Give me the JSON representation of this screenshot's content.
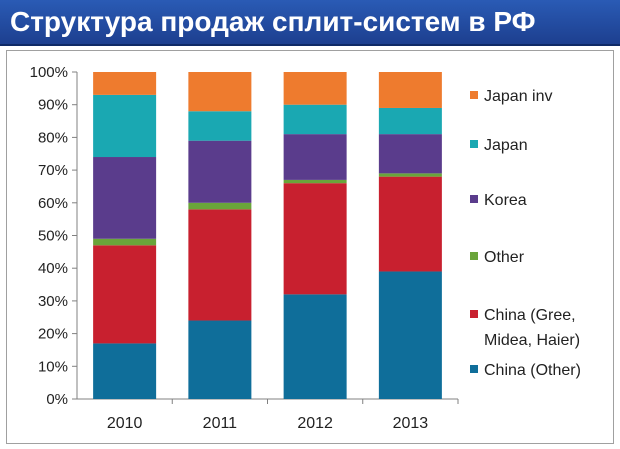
{
  "title": "Структура продаж сплит-систем в РФ",
  "chart_data": {
    "type": "bar",
    "stacked": true,
    "categories": [
      "2010",
      "2011",
      "2012",
      "2013"
    ],
    "y_ticks": [
      "0%",
      "10%",
      "20%",
      "30%",
      "40%",
      "50%",
      "60%",
      "70%",
      "80%",
      "90%",
      "100%"
    ],
    "ylim": [
      0,
      100
    ],
    "grid": false,
    "legend_position": "right",
    "series": [
      {
        "name": "China (Other)",
        "color": "#0f6e9a",
        "values": [
          17,
          24,
          32,
          39
        ]
      },
      {
        "name": "China (Gree, Midea, Haier)",
        "color": "#c8202f",
        "values": [
          30,
          34,
          34,
          29
        ]
      },
      {
        "name": "Other",
        "color": "#6aa43a",
        "values": [
          2,
          2,
          1,
          1
        ]
      },
      {
        "name": "Korea",
        "color": "#5a3c8c",
        "values": [
          25,
          19,
          14,
          12
        ]
      },
      {
        "name": "Japan",
        "color": "#1aa8b2",
        "values": [
          19,
          9,
          9,
          8
        ]
      },
      {
        "name": "Japan inv",
        "color": "#ee7b2e",
        "values": [
          7,
          12,
          10,
          11
        ]
      }
    ]
  }
}
